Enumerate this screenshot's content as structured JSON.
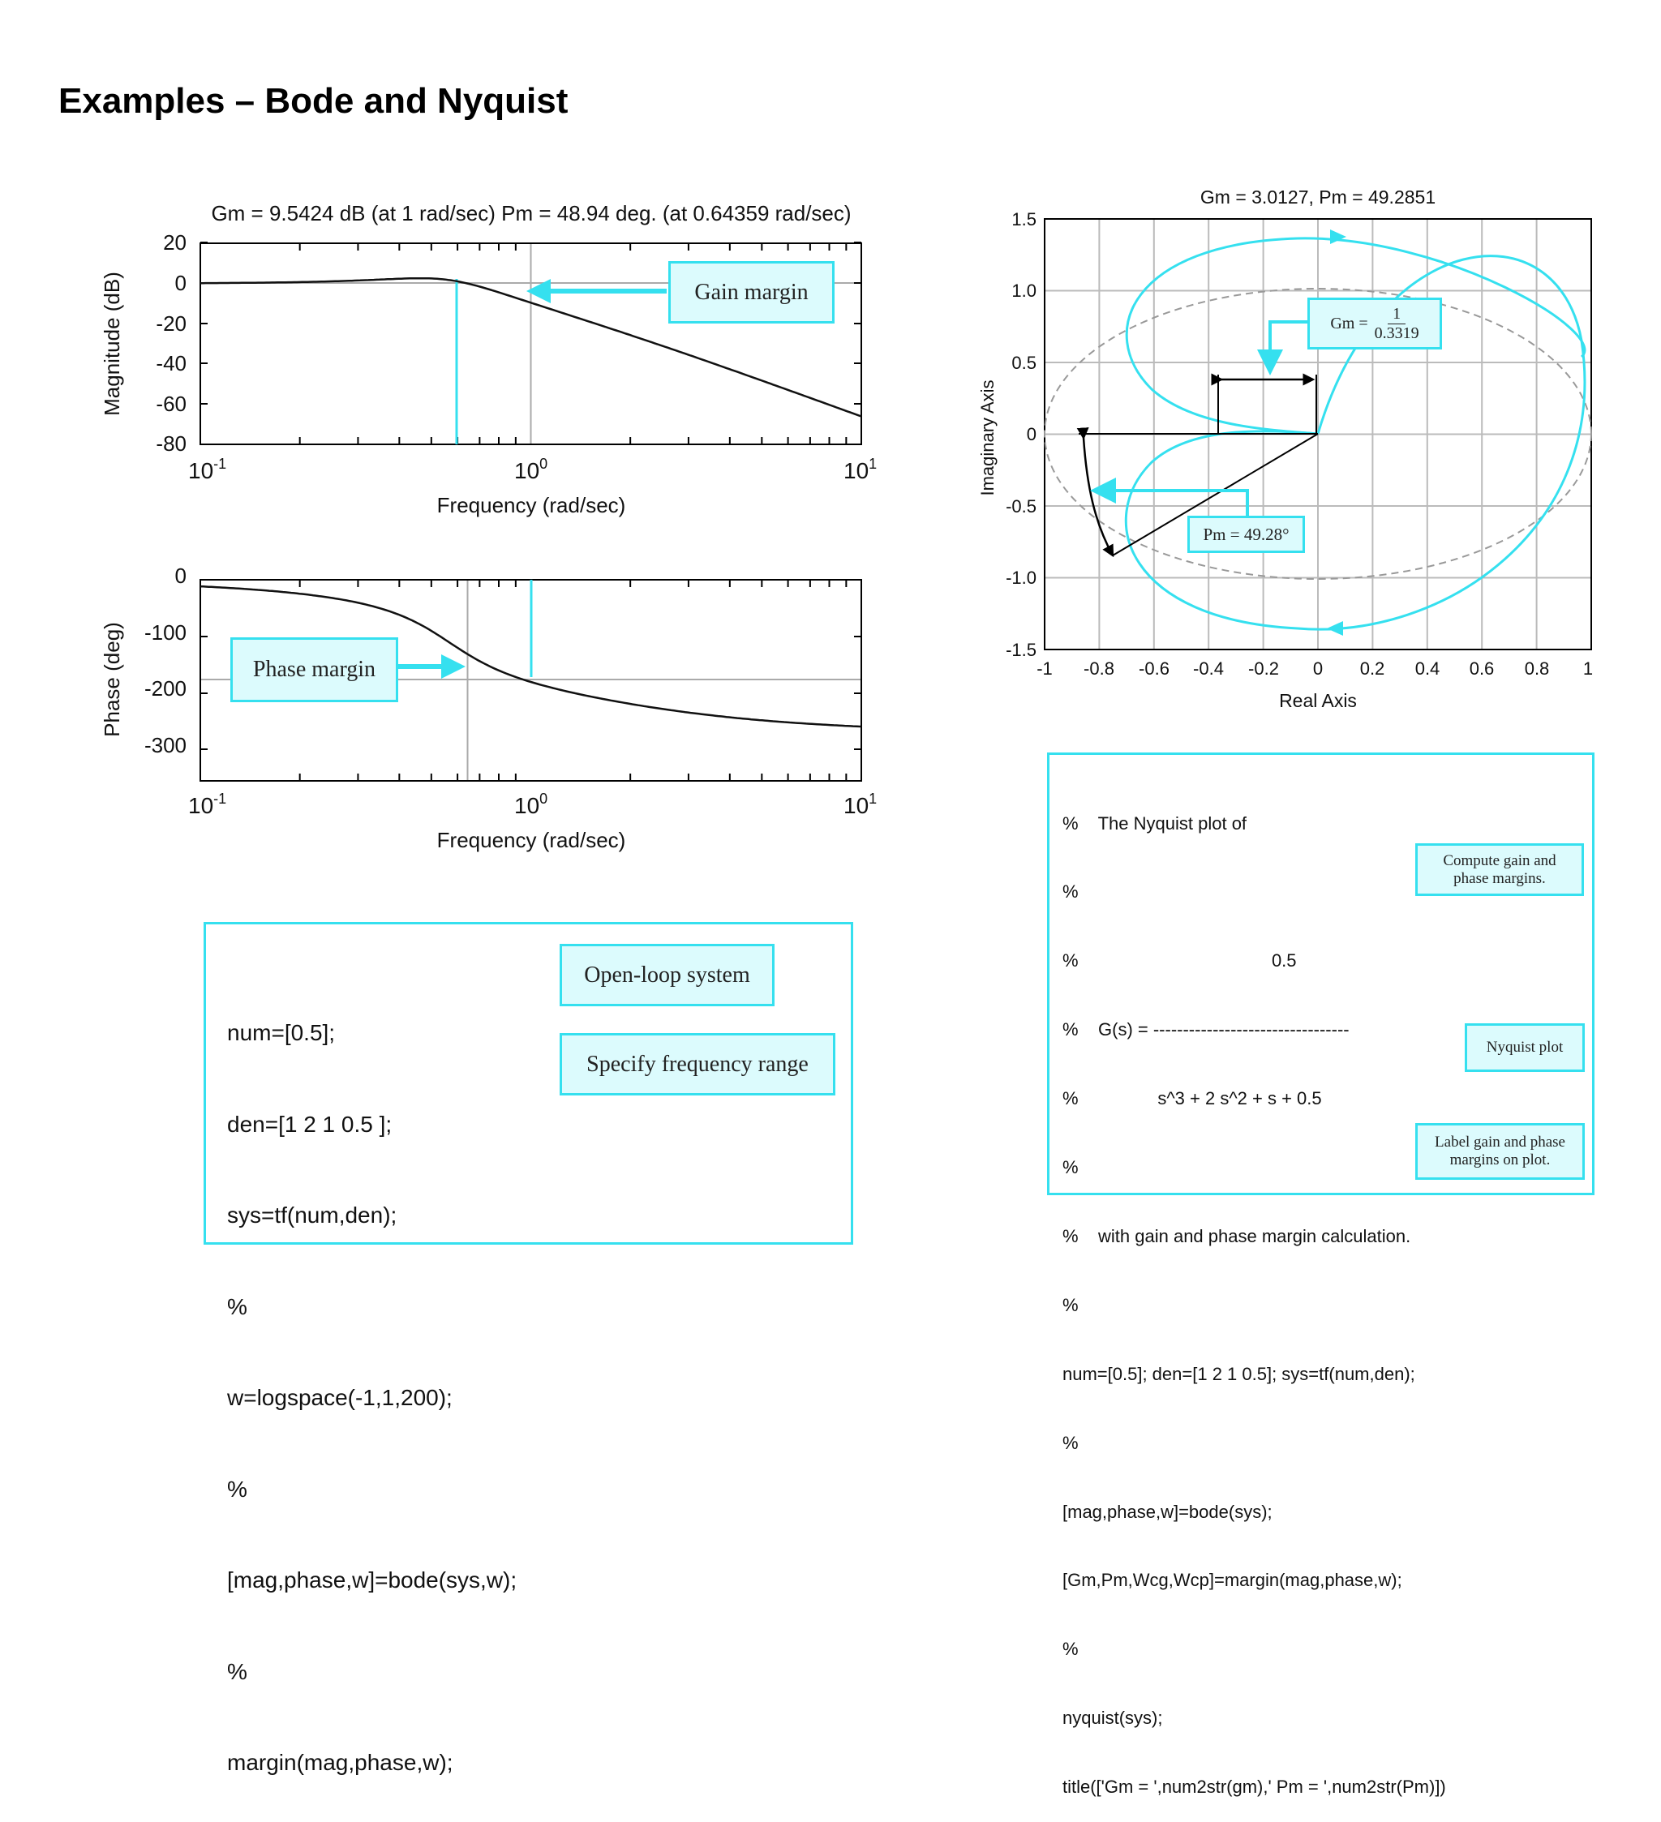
{
  "slide": {
    "title": "Examples – Bode and Nyquist"
  },
  "bode": {
    "title": "Gm = 9.5424 dB (at 1 rad/sec) Pm = 48.94 deg. (at 0.64359 rad/sec)",
    "xlabel": "Frequency (rad/sec)",
    "mag": {
      "ylabel": "Magnitude (dB)",
      "yticks": [
        "20",
        "0",
        "-20",
        "-40",
        "-60",
        "-80"
      ]
    },
    "phase": {
      "ylabel": "Phase (deg)",
      "yticks": [
        "0",
        "-100",
        "-200",
        "-300"
      ]
    },
    "xtick_base": "10",
    "xtick_exps": [
      "-1",
      "0",
      "1"
    ],
    "gain_margin_label": "Gain margin",
    "phase_margin_label": "Phase margin",
    "colors": {
      "accent": "#35e0ef",
      "curve": "#111111",
      "grid": "#aaaaaa"
    }
  },
  "nyquist": {
    "title": "Gm = 3.0127, Pm = 49.2851",
    "xlabel": "Real Axis",
    "ylabel": "Imaginary Axis",
    "xticks": [
      "-1",
      "-0.8",
      "-0.6",
      "-0.4",
      "-0.2",
      "0",
      "0.2",
      "0.4",
      "0.6",
      "0.8",
      "1"
    ],
    "yticks": [
      "1.5",
      "1.0",
      "0.5",
      "0",
      "-0.5",
      "-1.0",
      "-1.5"
    ],
    "gm_label": "Gm =",
    "gm_num": "1",
    "gm_den": "0.3319",
    "pm_label": "Pm = 49.28°"
  },
  "bode_code": {
    "lines": [
      "num=[0.5];",
      "den=[1 2 1 0.5 ];",
      "sys=tf(num,den);",
      "%",
      "w=logspace(-1,1,200);",
      "%",
      "[mag,phase,w]=bode(sys,w);",
      "%",
      "margin(mag,phase,w);"
    ],
    "open_loop_label": "Open-loop system",
    "freq_range_label": "Specify frequency range"
  },
  "nyquist_code": {
    "lines": [
      "%    The Nyquist plot of",
      "%",
      "%                                       0.5",
      "%    G(s) = ---------------------------------",
      "%                s^3 + 2 s^2 + s + 0.5",
      "%",
      "%    with gain and phase margin calculation.",
      "%",
      "num=[0.5]; den=[1 2 1 0.5]; sys=tf(num,den);",
      "%",
      "[mag,phase,w]=bode(sys);",
      "[Gm,Pm,Wcg,Wcp]=margin(mag,phase,w);",
      "%",
      "nyquist(sys);",
      "title(['Gm = ',num2str(gm),' Pm = ',num2str(Pm)])"
    ],
    "compute_label_1": "Compute gain and",
    "compute_label_2": "phase margins.",
    "nyquist_plot_label": "Nyquist plot",
    "label_gain_1": "Label gain and phase",
    "label_gain_2": "margins on plot."
  }
}
